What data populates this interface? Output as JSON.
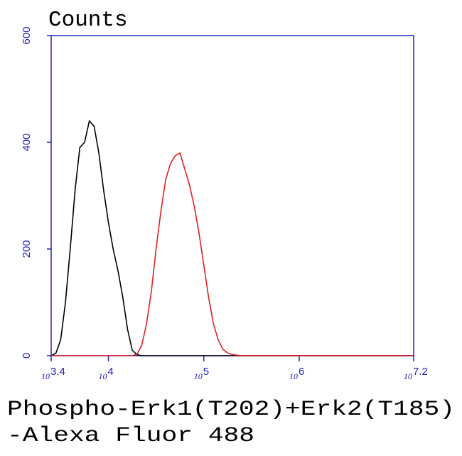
{
  "chart_data": {
    "type": "line",
    "title": "Counts",
    "x_label": [
      "Phospho-Erk1(T202)+Erk2(T185)",
      "-Alexa Fluor 488"
    ],
    "log_base": "10",
    "x": [
      3.4,
      3.45,
      3.5,
      3.55,
      3.6,
      3.65,
      3.7,
      3.75,
      3.8,
      3.85,
      3.9,
      3.95,
      4.0,
      4.05,
      4.1,
      4.15,
      4.2,
      4.25,
      4.3,
      4.35,
      4.4,
      4.45,
      4.5,
      4.55,
      4.6,
      4.65,
      4.7,
      4.75,
      4.8,
      4.85,
      4.9,
      4.95,
      5.0,
      5.05,
      5.1,
      5.15,
      5.2,
      5.25,
      5.3,
      5.35,
      5.4,
      5.45,
      5.5,
      5.55,
      5.6,
      6.0,
      6.5,
      7.2
    ],
    "series": [
      {
        "color": "#000000",
        "values": [
          0,
          5,
          30,
          100,
          200,
          310,
          390,
          400,
          440,
          430,
          380,
          310,
          250,
          200,
          160,
          110,
          50,
          10,
          2,
          0,
          0,
          0,
          0,
          0,
          0,
          0,
          0,
          0,
          0,
          0,
          0,
          0,
          0,
          0,
          0,
          0,
          0,
          0,
          0,
          0,
          0,
          0,
          0,
          0,
          0,
          0,
          0,
          0
        ]
      },
      {
        "color": "#e02020",
        "values": [
          0,
          0,
          0,
          0,
          0,
          0,
          0,
          0,
          0,
          0,
          0,
          0,
          0,
          0,
          0,
          0,
          0,
          0,
          3,
          20,
          60,
          120,
          200,
          270,
          330,
          360,
          375,
          380,
          350,
          320,
          280,
          230,
          170,
          110,
          60,
          30,
          12,
          5,
          2,
          1,
          0,
          0,
          0,
          0,
          0,
          0,
          0,
          0
        ]
      }
    ],
    "xlim": [
      3.4,
      7.2
    ],
    "xticks": [
      3.4,
      4,
      5,
      6,
      7.2
    ],
    "ylim": [
      0,
      600
    ],
    "yticks": [
      0,
      200,
      400,
      600
    ],
    "axis_color": "#2020c0"
  }
}
